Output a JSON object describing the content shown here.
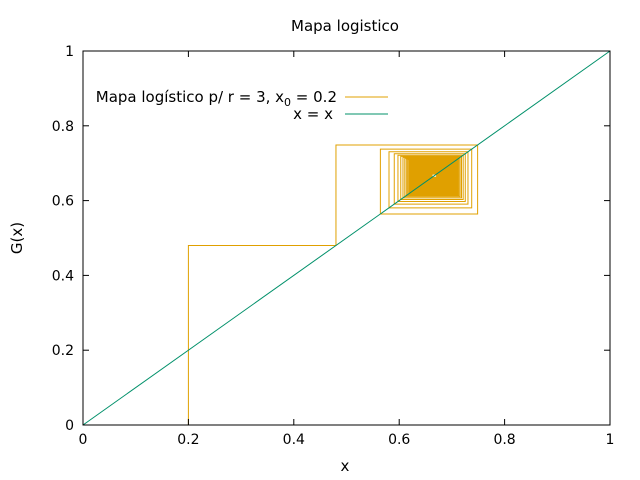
{
  "chart_data": {
    "type": "line",
    "title": "Mapa logistico",
    "xlabel": "x",
    "ylabel": "G(x)",
    "xlim": [
      0,
      1
    ],
    "ylim": [
      0,
      1
    ],
    "xticks": [
      "0",
      "0.2",
      "0.4",
      "0.6",
      "0.8",
      "1"
    ],
    "yticks": [
      "0",
      "0.2",
      "0.4",
      "0.6",
      "0.8",
      "1"
    ],
    "grid": false,
    "legend_position": "top-left",
    "map": {
      "r": 3,
      "x0": 0.2,
      "iterations": 3000
    },
    "series": [
      {
        "name": "Mapa logístico p/ r = 3, x",
        "name_subscript": "0",
        "name_suffix": " = 0.2",
        "kind": "cobweb",
        "color": "#e0a000"
      },
      {
        "name": "x = x",
        "kind": "identity",
        "x": [
          0,
          1
        ],
        "y": [
          0,
          1
        ],
        "color": "#00906a"
      }
    ]
  }
}
